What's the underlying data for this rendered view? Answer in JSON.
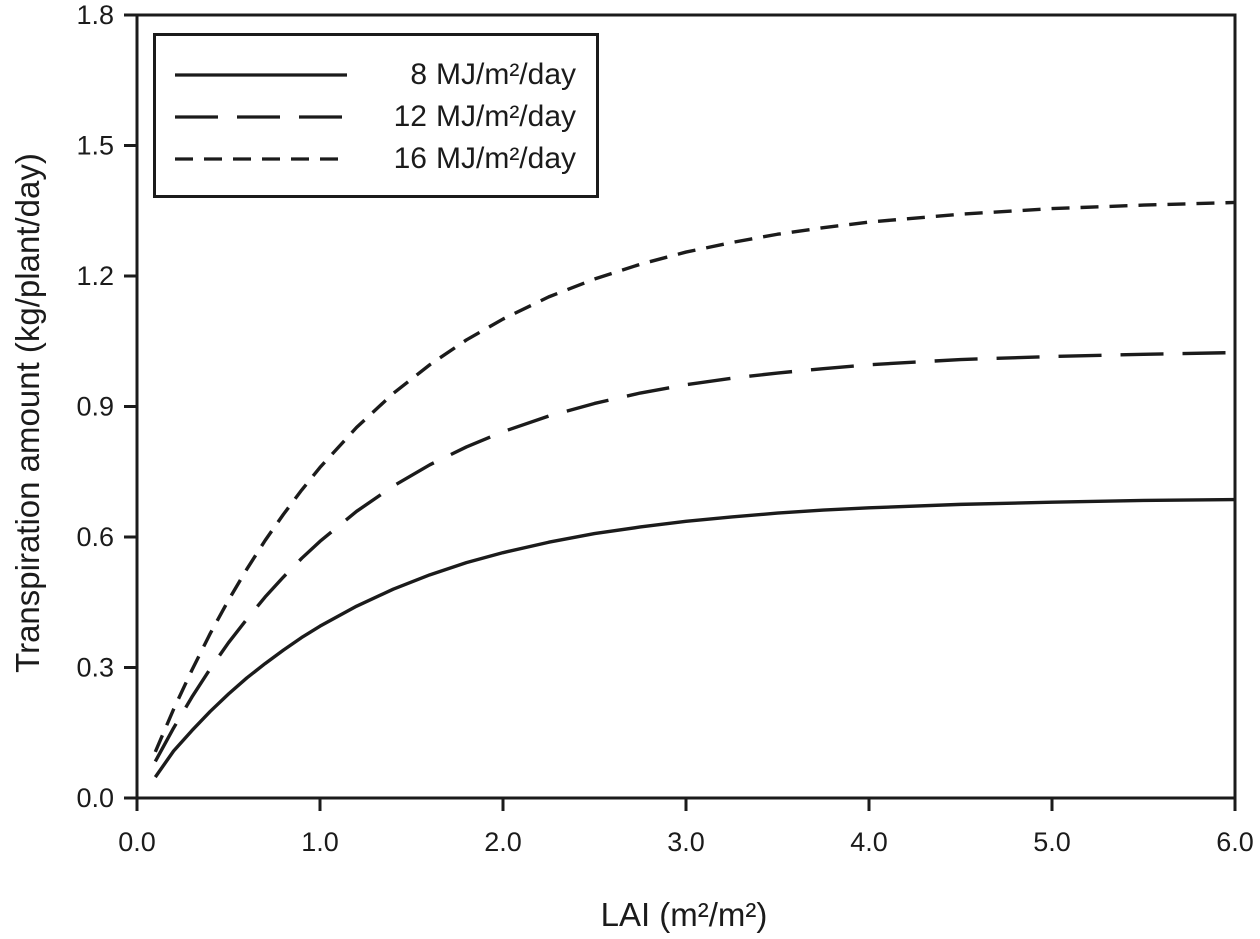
{
  "figure": {
    "background": "#ffffff",
    "ink_color": "#1b1b1b"
  },
  "chart_data": {
    "type": "line",
    "title": "",
    "xlabel": "LAI (m²/m²)",
    "ylabel": "Transpiration amount (kg/plant/day)",
    "xlim": [
      0,
      6
    ],
    "ylim": [
      0,
      1.8
    ],
    "grid": false,
    "legend_position": "upper-left",
    "xticks": [
      0,
      1,
      2,
      3,
      4,
      5,
      6
    ],
    "xtick_labels": [
      "0.0",
      "1.0",
      "2.0",
      "3.0",
      "4.0",
      "5.0",
      "6.0"
    ],
    "yticks": [
      0,
      0.3,
      0.6,
      0.9,
      1.2,
      1.5,
      1.8
    ],
    "ytick_labels": [
      "0.0",
      "0.3",
      "0.6",
      "0.9",
      "1.2",
      "1.5",
      "1.8"
    ],
    "x": [
      0.1,
      0.2,
      0.3,
      0.4,
      0.5,
      0.6,
      0.7,
      0.8,
      0.9,
      1.0,
      1.2,
      1.4,
      1.6,
      1.8,
      2.0,
      2.25,
      2.5,
      2.75,
      3.0,
      3.25,
      3.5,
      3.75,
      4.0,
      4.5,
      5.0,
      5.5,
      6.0
    ],
    "series": [
      {
        "id": "8mj",
        "name": "8 MJ/m²/day",
        "legend_value": "8",
        "legend_unit": "MJ/m²/day",
        "style": "solid",
        "values": [
          0.048,
          0.108,
          0.155,
          0.199,
          0.239,
          0.276,
          0.309,
          0.34,
          0.369,
          0.395,
          0.441,
          0.48,
          0.513,
          0.541,
          0.564,
          0.588,
          0.608,
          0.623,
          0.636,
          0.646,
          0.655,
          0.662,
          0.667,
          0.675,
          0.68,
          0.684,
          0.686
        ]
      },
      {
        "id": "12mj",
        "name": "12 MJ/m²/day",
        "legend_value": "12",
        "legend_unit": "MJ/m²/day",
        "style": "long-dash",
        "values": [
          0.084,
          0.161,
          0.232,
          0.297,
          0.357,
          0.411,
          0.462,
          0.508,
          0.551,
          0.59,
          0.659,
          0.717,
          0.766,
          0.807,
          0.842,
          0.878,
          0.907,
          0.931,
          0.95,
          0.965,
          0.977,
          0.987,
          0.996,
          1.008,
          1.015,
          1.02,
          1.024
        ]
      },
      {
        "id": "16mj",
        "name": "16 MJ/m²/day",
        "legend_value": "16",
        "legend_unit": "MJ/m²/day",
        "style": "short-dash",
        "values": [
          0.106,
          0.204,
          0.294,
          0.378,
          0.455,
          0.526,
          0.592,
          0.652,
          0.708,
          0.76,
          0.852,
          0.93,
          0.996,
          1.053,
          1.101,
          1.152,
          1.193,
          1.227,
          1.255,
          1.277,
          1.296,
          1.311,
          1.324,
          1.342,
          1.355,
          1.363,
          1.369
        ]
      }
    ]
  }
}
